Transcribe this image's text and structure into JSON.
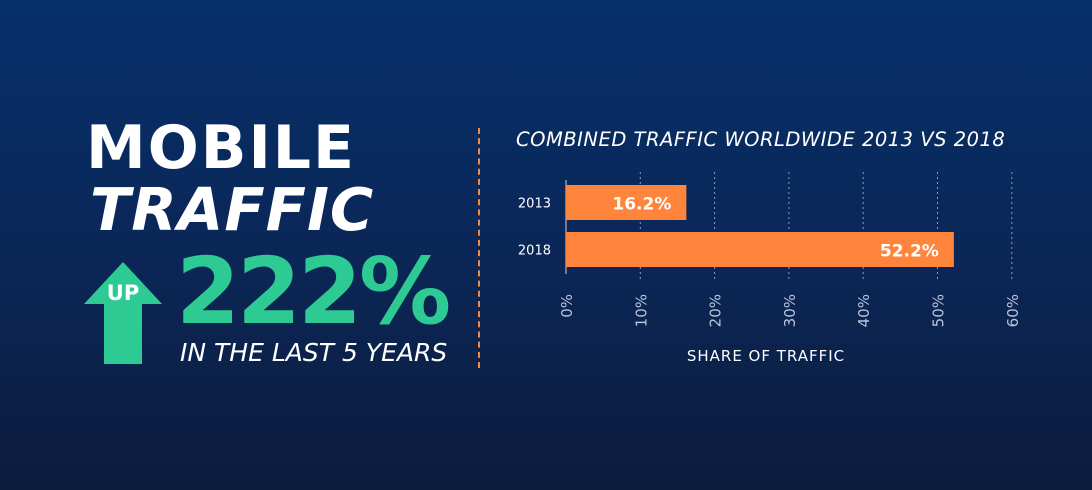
{
  "headline": {
    "line1": "MOBILE",
    "line2": "TRAFFIC",
    "arrow_label": "UP",
    "big_number": "222%",
    "subline": "IN THE LAST 5 YEARS"
  },
  "colors": {
    "accent_green": "#2dcb93",
    "bar_orange": "#ff843c",
    "background": "#0b2656"
  },
  "chart_data": {
    "type": "bar",
    "orientation": "horizontal",
    "title": "COMBINED TRAFFIC WORLDWIDE 2013 VS 2018",
    "xlabel": "SHARE OF TRAFFIC",
    "ylabel": "",
    "categories": [
      "2013",
      "2018"
    ],
    "values": [
      16.2,
      52.2
    ],
    "value_labels": [
      "16.2%",
      "52.2%"
    ],
    "xlim": [
      0,
      60
    ],
    "ticks": [
      0,
      10,
      20,
      30,
      40,
      50,
      60
    ],
    "tick_labels": [
      "0%",
      "10%",
      "20%",
      "30%",
      "40%",
      "50%",
      "60%"
    ],
    "grid": true
  }
}
